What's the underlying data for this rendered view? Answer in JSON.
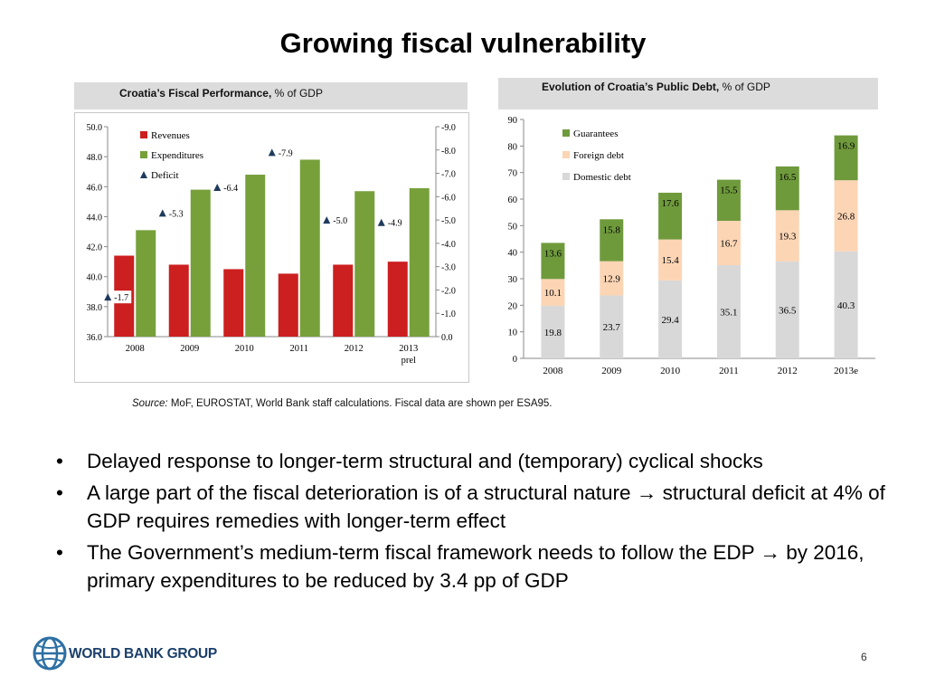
{
  "slide": {
    "title": "Growing fiscal vulnerability",
    "source_label": "Source:",
    "source_text": "MoF, EUROSTAT, World Bank staff calculations. Fiscal data are shown per ESA95.",
    "bullets": [
      "Delayed response to longer-term structural and (temporary) cyclical shocks",
      "A large part of the fiscal deterioration is of a structural nature → structural deficit at 4% of GDP requires remedies with longer-term effect",
      "The Government’s medium-term fiscal framework needs to follow the EDP → by 2016, primary expenditures to be reduced by 3.4 pp of GDP"
    ],
    "bullet_marker": "•",
    "logo_text": "WORLD BANK GROUP",
    "page_number": "6"
  },
  "chart1_caption": {
    "bold": "Croatia’s Fiscal Performance,",
    "rest": " % of GDP"
  },
  "chart2_caption": {
    "bold": "Evolution of Croatia’s Public Debt,",
    "rest": " % of GDP"
  },
  "colors": {
    "revenues": "#cc1f1f",
    "expenditures": "#77a03b",
    "deficit": "#1f3b5c",
    "guarantees": "#6f9a3c",
    "foreign_debt": "#fcd5b5",
    "domestic_debt": "#d8d8d8"
  },
  "chart_data": [
    {
      "type": "bar",
      "title": "Croatia’s Fiscal Performance, % of GDP",
      "categories": [
        "2008",
        "2009",
        "2010",
        "2011",
        "2012",
        "2013"
      ],
      "category_sublabels": [
        "",
        "",
        "",
        "",
        "",
        "prel"
      ],
      "series": [
        {
          "name": "Revenues",
          "axis": "left",
          "values": [
            41.4,
            40.8,
            40.5,
            40.2,
            40.8,
            41.0
          ]
        },
        {
          "name": "Expenditures",
          "axis": "left",
          "values": [
            43.1,
            45.8,
            46.8,
            47.8,
            45.7,
            45.9
          ]
        },
        {
          "name": "Deficit",
          "axis": "right",
          "marker": "triangle",
          "values": [
            -1.7,
            -5.3,
            -6.4,
            -7.9,
            -5.0,
            -4.9
          ],
          "labels": [
            "-1.7",
            "-5.3",
            "-6.4",
            "-7.9",
            "-5.0",
            "-4.9"
          ]
        }
      ],
      "left_axis": {
        "ylim": [
          36.0,
          50.0
        ],
        "ticks": [
          "36.0",
          "38.0",
          "40.0",
          "42.0",
          "44.0",
          "46.0",
          "48.0",
          "50.0"
        ]
      },
      "right_axis": {
        "ylim": [
          0.0,
          -9.0
        ],
        "ticks": [
          "0.0",
          "-1.0",
          "-2.0",
          "-3.0",
          "-4.0",
          "-5.0",
          "-6.0",
          "-7.0",
          "-8.0",
          "-9.0"
        ]
      },
      "legend": [
        "Revenues",
        "Expenditures",
        "Deficit"
      ],
      "legend_position": "top-left",
      "grid": false
    },
    {
      "type": "bar",
      "stacked": true,
      "title": "Evolution of Croatia’s Public Debt, % of GDP",
      "categories": [
        "2008",
        "2009",
        "2010",
        "2011",
        "2012",
        "2013e"
      ],
      "series": [
        {
          "name": "Domestic debt",
          "values": [
            19.8,
            23.7,
            29.4,
            35.1,
            36.5,
            40.3
          ],
          "labels": [
            "19.8",
            "23.7",
            "29.4",
            "35.1",
            "36.5",
            "40.3"
          ]
        },
        {
          "name": "Foreign debt",
          "values": [
            10.1,
            12.9,
            15.4,
            16.7,
            19.3,
            26.8
          ],
          "labels": [
            "10.1",
            "12.9",
            "15.4",
            "16.7",
            "19.3",
            "26.8"
          ]
        },
        {
          "name": "Guarantees",
          "values": [
            13.6,
            15.8,
            17.6,
            15.5,
            16.5,
            16.9
          ],
          "labels": [
            "13.6",
            "15.8",
            "17.6",
            "15.5",
            "16.5",
            "16.9"
          ]
        }
      ],
      "ylim": [
        0,
        90
      ],
      "yticks": [
        "0",
        "10",
        "20",
        "30",
        "40",
        "50",
        "60",
        "70",
        "80",
        "90"
      ],
      "legend": [
        "Guarantees",
        "Foreign debt",
        "Domestic debt"
      ],
      "legend_position": "top-left",
      "grid": false
    }
  ]
}
